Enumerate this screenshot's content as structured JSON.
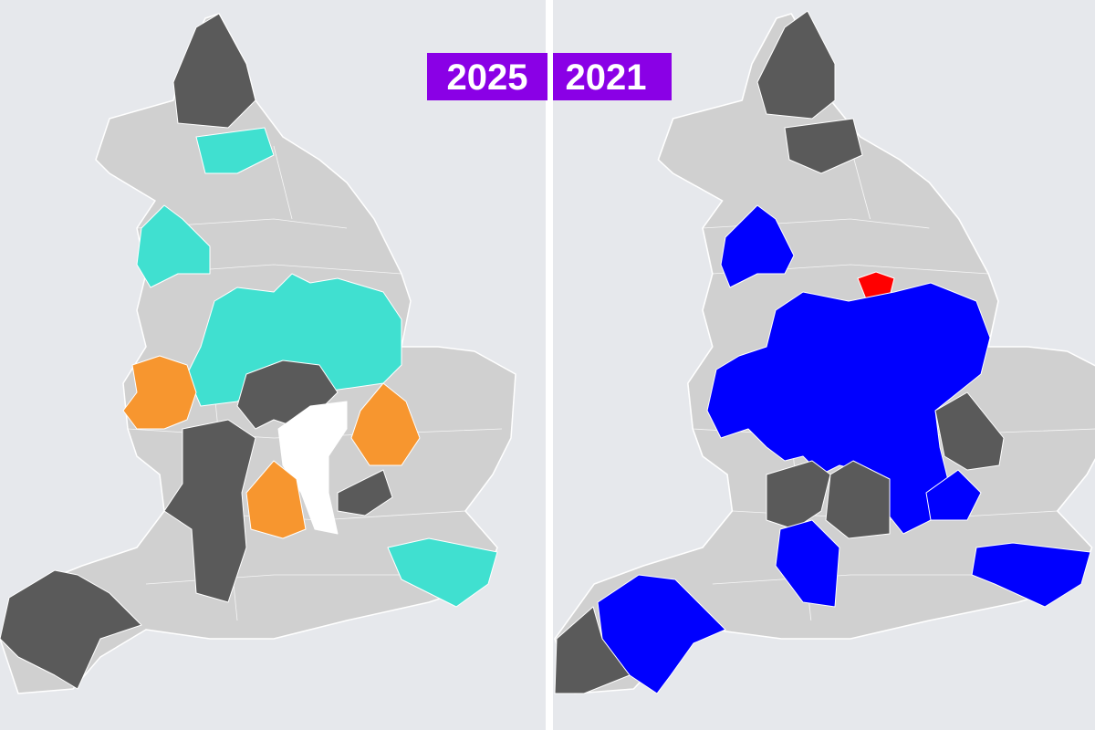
{
  "labels": {
    "left": "2025",
    "right": "2021"
  }
}
